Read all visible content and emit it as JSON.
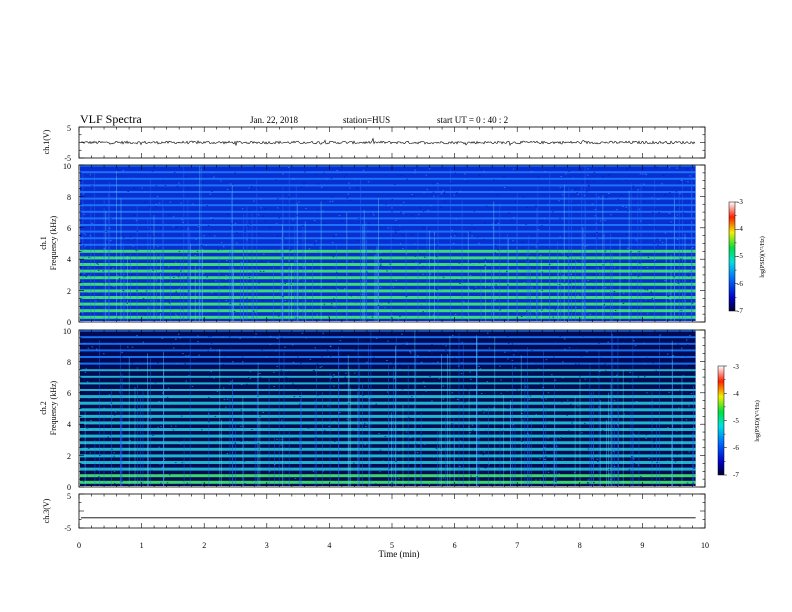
{
  "header": {
    "title": "VLF Spectra",
    "date": "Jan. 22, 2018",
    "station": "station=HUS",
    "start": "start UT = 0 : 40 : 2"
  },
  "chart_data": [
    {
      "type": "line",
      "ylabel": "ch.1(V)",
      "ylim": [
        -5,
        5
      ],
      "yticks": [
        "5",
        "-5"
      ],
      "baseline": 0,
      "xlim": [
        0,
        10
      ]
    },
    {
      "type": "heatmap",
      "ylabel_top": "ch.1",
      "ylabel": "Frequency (kHz)",
      "ylim": [
        0,
        10
      ],
      "yticks": [
        "0",
        "2",
        "4",
        "6",
        "8",
        "10"
      ],
      "xlim": [
        0,
        10
      ],
      "colorbar": {
        "label": "log(PSD)(V²/Hz)",
        "ticks": [
          "-3",
          "-4",
          "-5",
          "-6",
          "-7"
        ],
        "range": [
          -7,
          -3
        ]
      }
    },
    {
      "type": "heatmap",
      "ylabel_top": "ch.2",
      "ylabel": "Frequency (kHz)",
      "ylim": [
        0,
        10
      ],
      "yticks": [
        "0",
        "2",
        "4",
        "6",
        "8",
        "10"
      ],
      "xlim": [
        0,
        10
      ],
      "colorbar": {
        "label": "log(PSD)(V²/Hz)",
        "ticks": [
          "-3",
          "-4",
          "-5",
          "-6",
          "-7"
        ],
        "range": [
          -7,
          -3
        ]
      }
    },
    {
      "type": "line",
      "ylabel": "ch.3(V)",
      "ylim": [
        -5,
        5
      ],
      "yticks": [
        "5",
        "-5"
      ],
      "baseline": -2,
      "xlabel": "Time (min)",
      "xlim": [
        0,
        10
      ],
      "xticks": [
        "0",
        "1",
        "2",
        "3",
        "4",
        "5",
        "6",
        "7",
        "8",
        "9",
        "10"
      ]
    }
  ]
}
